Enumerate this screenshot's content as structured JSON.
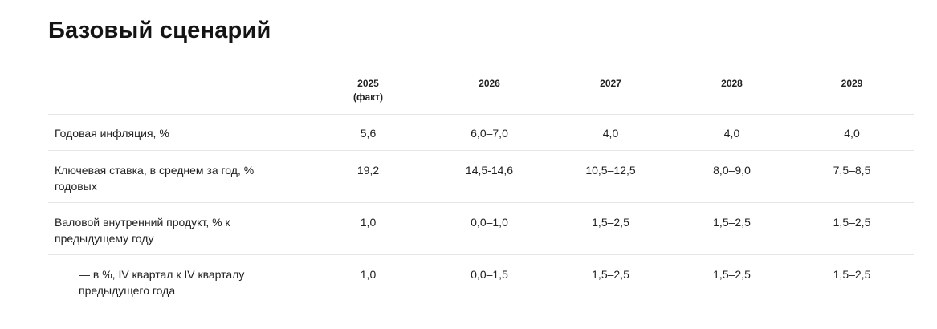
{
  "title": "Базовый сценарий",
  "table": {
    "header": {
      "label": "",
      "years": [
        {
          "year": "2025",
          "note": "(факт)"
        },
        {
          "year": "2026",
          "note": ""
        },
        {
          "year": "2027",
          "note": ""
        },
        {
          "year": "2028",
          "note": ""
        },
        {
          "year": "2029",
          "note": ""
        }
      ]
    },
    "rows": [
      {
        "label": "Годовая инфляция,  %",
        "values": [
          "5,6",
          "6,0–7,0",
          "4,0",
          "4,0",
          "4,0"
        ]
      },
      {
        "label": "Ключевая ставка, в среднем за год, % годовых",
        "values": [
          "19,2",
          "14,5-14,6",
          "10,5–12,5",
          "8,0–9,0",
          "7,5–8,5"
        ]
      },
      {
        "label": "Валовой внутренний продукт, % к предыдущему году",
        "values": [
          "1,0",
          "0,0–1,0",
          "1,5–2,5",
          "1,5–2,5",
          "1,5–2,5"
        ]
      },
      {
        "label": "— в %, IV квартал к IV кварталу предыдущего года",
        "values": [
          "1,0",
          "0,0–1,5",
          "1,5–2,5",
          "1,5–2,5",
          "1,5–2,5"
        ]
      }
    ]
  }
}
